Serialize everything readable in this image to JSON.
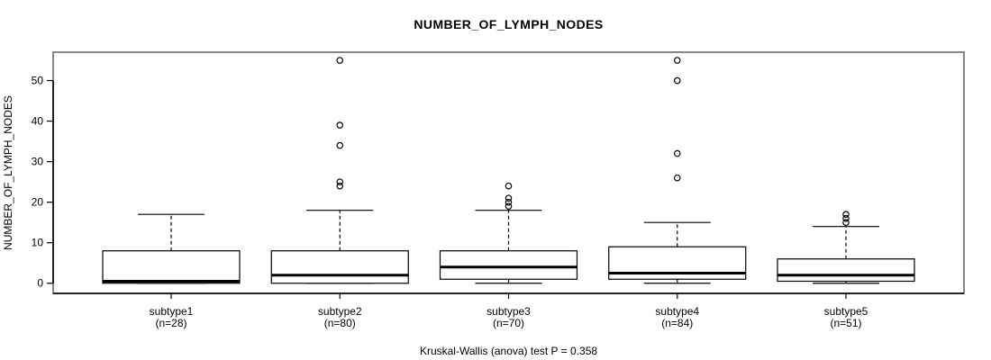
{
  "chart_data": {
    "type": "boxplot",
    "title": "NUMBER_OF_LYMPH_NODES",
    "ylabel": "NUMBER_OF_LYMPH_NODES",
    "footer": "Kruskal-Wallis (anova) test P = 0.358",
    "ylim": [
      -2.5,
      57
    ],
    "y_ticks": [
      0,
      10,
      20,
      30,
      40,
      50
    ],
    "grid": false,
    "legend": "none",
    "colors": {
      "plot_border": "#878787",
      "axis": "#000000",
      "box_border": "#000000",
      "box_fill": "#ffffff",
      "median": "#000000",
      "outlier": "#000000"
    },
    "groups": [
      {
        "label": "subtype1",
        "n_label": "(n=28)",
        "whislo": 0,
        "q1": 0,
        "med": 0.5,
        "q3": 8,
        "whishi": 17,
        "outliers": []
      },
      {
        "label": "subtype2",
        "n_label": "(n=80)",
        "whislo": 0,
        "q1": 0,
        "med": 2,
        "q3": 8,
        "whishi": 18,
        "outliers": [
          24,
          25,
          34,
          39,
          55
        ]
      },
      {
        "label": "subtype3",
        "n_label": "(n=70)",
        "whislo": 0,
        "q1": 1,
        "med": 4,
        "q3": 8,
        "whishi": 18,
        "outliers": [
          19,
          20,
          21,
          24
        ]
      },
      {
        "label": "subtype4",
        "n_label": "(n=84)",
        "whislo": 0,
        "q1": 1,
        "med": 2.5,
        "q3": 9,
        "whishi": 15,
        "outliers": [
          26,
          32,
          50,
          55
        ]
      },
      {
        "label": "subtype5",
        "n_label": "(n=51)",
        "whislo": 0,
        "q1": 0.5,
        "med": 2,
        "q3": 6,
        "whishi": 14,
        "outliers": [
          15,
          16,
          17
        ]
      }
    ]
  }
}
